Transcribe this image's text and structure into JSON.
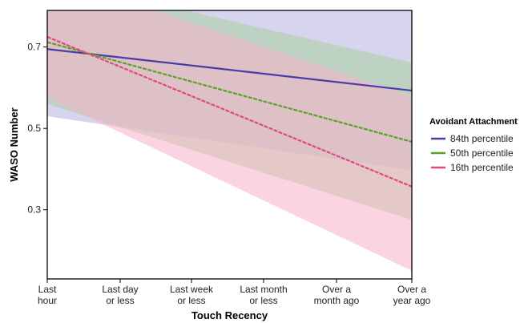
{
  "chart_data": {
    "type": "line",
    "xlabel": "Touch Recency",
    "ylabel": "WASO Number",
    "x_categories": [
      [
        "Last",
        "hour"
      ],
      [
        "Last day",
        "or less"
      ],
      [
        "Last week",
        "or less"
      ],
      [
        "Last month",
        "or less"
      ],
      [
        "Over a",
        "month ago"
      ],
      [
        "Over a",
        "year ago"
      ]
    ],
    "yticks": [
      "0.3",
      "0.5",
      "0.7"
    ],
    "ylim": [
      0.13,
      0.79
    ],
    "legend": {
      "title": "Avoidant Attachment",
      "position": "right"
    },
    "series": [
      {
        "name": "84th percentile",
        "color": "#4b3aa8",
        "fill": "#b6b0de",
        "line_style": "solid",
        "start": 0.695,
        "end": 0.593,
        "ci_lower_start": 0.53,
        "ci_lower_end": 0.397,
        "ci_upper_start": 0.858,
        "ci_upper_end": 0.79
      },
      {
        "name": "50th percentile",
        "color": "#5aa02c",
        "fill": "#a9cfa0",
        "line_style": "dashed",
        "start": 0.712,
        "end": 0.467,
        "ci_lower_start": 0.56,
        "ci_lower_end": 0.275,
        "ci_upper_start": 0.868,
        "ci_upper_end": 0.662
      },
      {
        "name": "16th percentile",
        "color": "#e04a7a",
        "fill": "#f5b3c8",
        "line_style": "dashed",
        "start": 0.725,
        "end": 0.357,
        "ci_lower_start": 0.575,
        "ci_lower_end": 0.15,
        "ci_upper_start": 0.878,
        "ci_upper_end": 0.578
      }
    ]
  }
}
